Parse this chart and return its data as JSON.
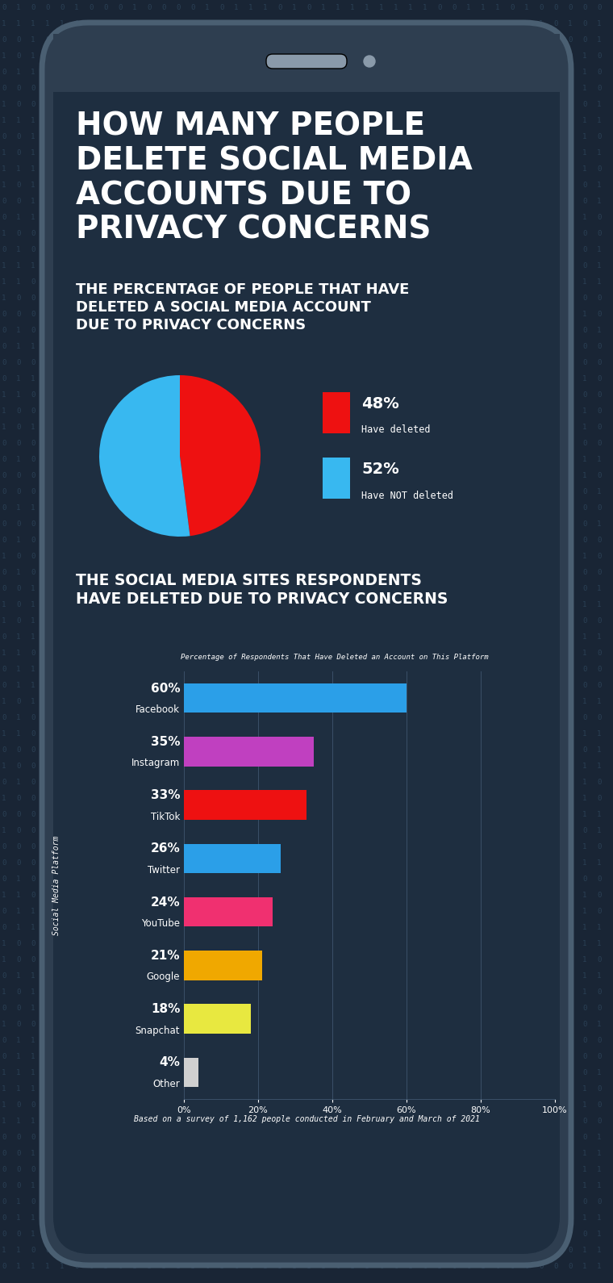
{
  "title_main": "HOW MANY PEOPLE\nDELETE SOCIAL MEDIA\nACCOUNTS DUE TO\nPRIVACY CONCERNS",
  "subtitle_pie": "THE PERCENTAGE OF PEOPLE THAT HAVE\nDELETED A SOCIAL MEDIA ACCOUNT\nDUE TO PRIVACY CONCERNS",
  "subtitle_bar": "THE SOCIAL MEDIA SITES RESPONDENTS\nHAVE DELETED DUE TO PRIVACY CONCERNS",
  "bar_chart_title": "Percentage of Respondents That Have Deleted an Account on This Platform",
  "pie_data": [
    48,
    52
  ],
  "pie_colors": [
    "#ee1111",
    "#38b8f0"
  ],
  "bar_platforms": [
    "Facebook",
    "Instagram",
    "TikTok",
    "Twitter",
    "YouTube",
    "Google",
    "Snapchat",
    "Other"
  ],
  "bar_values": [
    60,
    35,
    33,
    26,
    24,
    21,
    18,
    4
  ],
  "bar_colors": [
    "#2b9fe8",
    "#c040c0",
    "#ee1111",
    "#2b9fe8",
    "#f03070",
    "#f0a800",
    "#e8e840",
    "#d0d0d0"
  ],
  "bar_ylabel": "Social Media Platform",
  "footnote": "Based on a survey of 1,162 people conducted in February and March of 2021",
  "bg_color": "#192535",
  "phone_outer_color": "#2e3e50",
  "phone_inner_color": "#1e2e40",
  "text_color": "#ffffff",
  "binary_color": "#2a4055",
  "grid_color": "#3a5068",
  "legend_pct_colors": [
    "#ee1111",
    "#38b8f0"
  ],
  "legend_labels": [
    "Have deleted",
    "Have NOT deleted"
  ],
  "legend_pcts": [
    "48%",
    "52%"
  ]
}
